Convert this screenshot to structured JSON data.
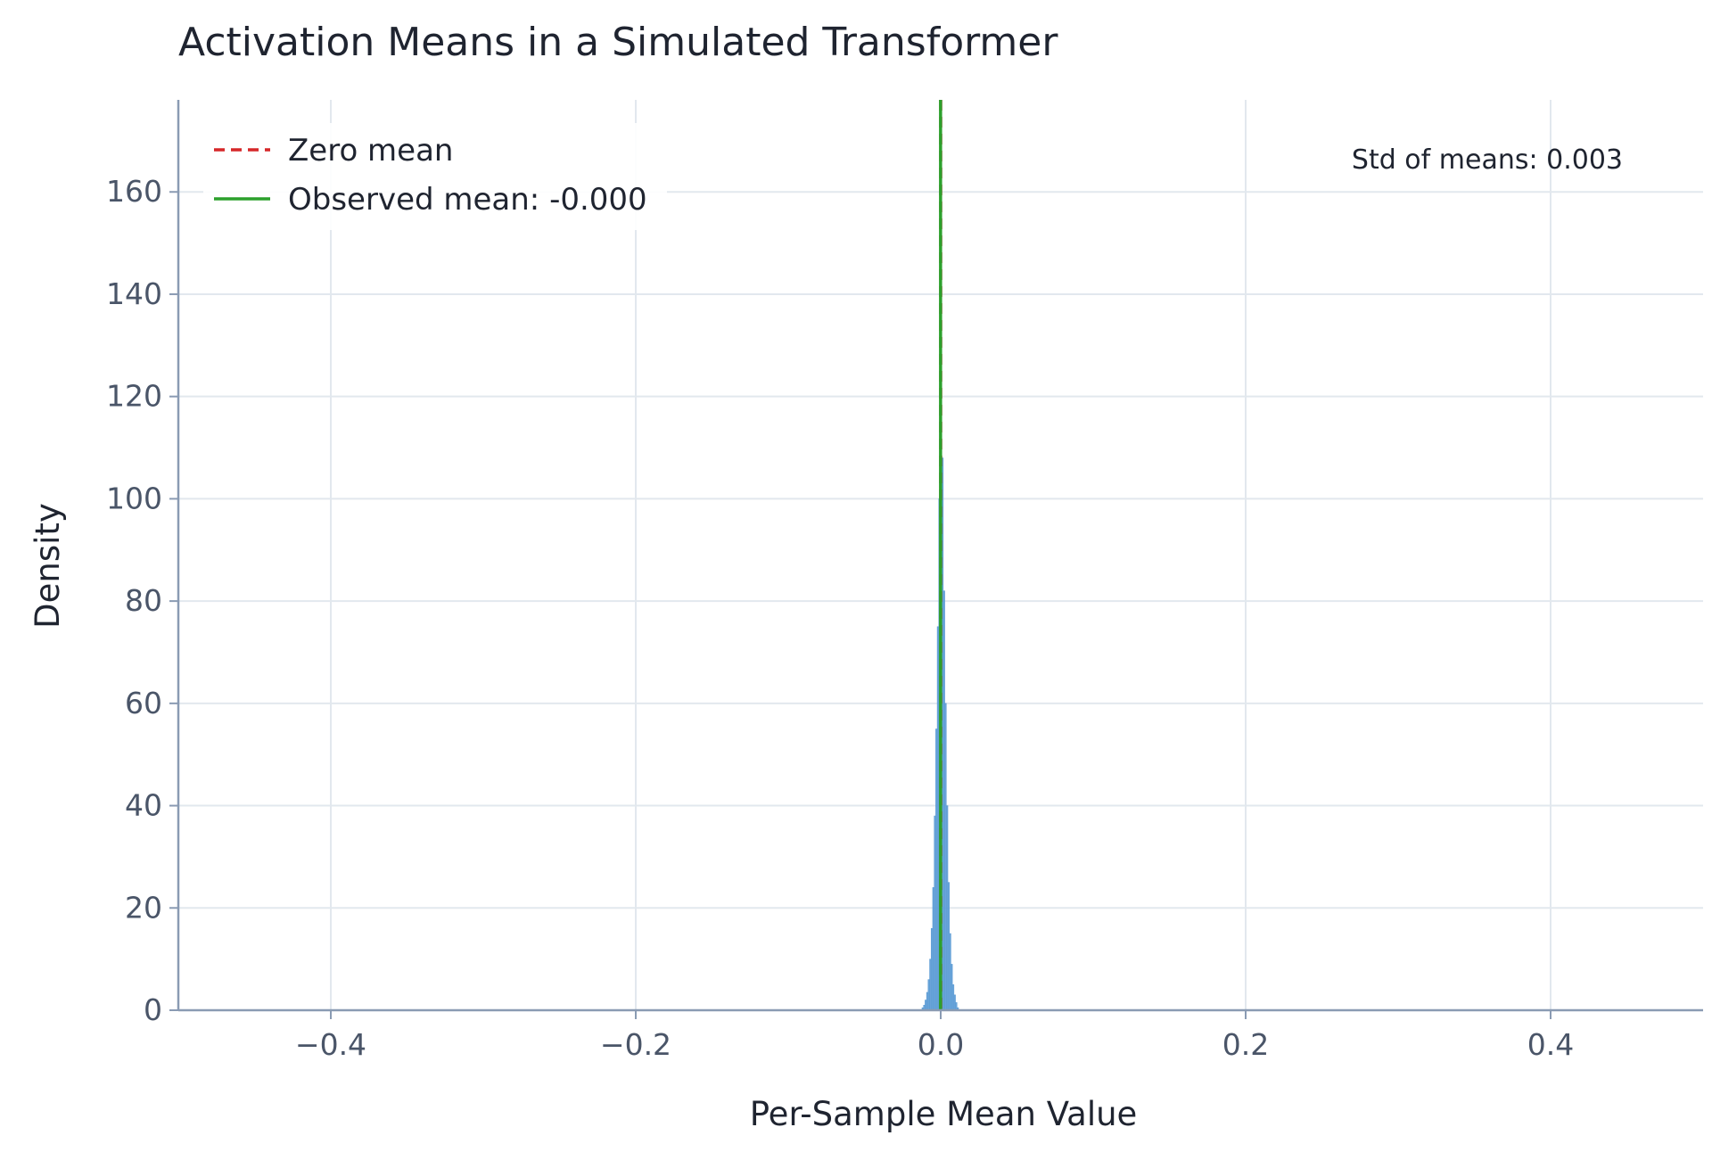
{
  "chart_data": {
    "type": "histogram",
    "title": "Activation Means in a Simulated Transformer",
    "xlabel": "Per-Sample Mean Value",
    "ylabel": "Density",
    "xlim": [
      -0.5,
      0.5
    ],
    "ylim": [
      0,
      178
    ],
    "x_ticks": [
      -0.4,
      -0.2,
      0.0,
      0.2,
      0.4
    ],
    "x_tick_labels": [
      "−0.4",
      "−0.2",
      "0.0",
      "0.2",
      "0.4"
    ],
    "y_ticks": [
      0,
      20,
      40,
      60,
      80,
      100,
      120,
      140,
      160
    ],
    "y_tick_labels": [
      "0",
      "20",
      "40",
      "60",
      "80",
      "100",
      "120",
      "140",
      "160"
    ],
    "grid": true,
    "legend_position": "top-left",
    "histogram": {
      "bin_centers": [
        -0.0118,
        -0.0108,
        -0.0098,
        -0.0088,
        -0.0078,
        -0.0068,
        -0.0058,
        -0.0048,
        -0.0038,
        -0.0028,
        -0.0018,
        -0.0008,
        0.0002,
        0.0012,
        0.0022,
        0.0032,
        0.0042,
        0.0052,
        0.0062,
        0.0072,
        0.0082,
        0.0092,
        0.0102,
        0.0112
      ],
      "density": [
        0.5,
        1,
        2,
        3.5,
        6,
        10,
        16,
        24,
        38,
        55,
        75,
        100,
        125,
        108,
        82,
        60,
        40,
        25,
        15,
        9,
        5,
        3,
        1.5,
        0.5
      ],
      "color": "#5b9bd5"
    },
    "lines": [
      {
        "label": "Zero mean",
        "x": 0.0,
        "color": "#d62728",
        "style": "dashed"
      },
      {
        "label": "Observed mean: -0.000",
        "x": -0.0001,
        "color": "#2ca02c",
        "style": "solid"
      }
    ],
    "annotation": "Std of means: 0.003"
  },
  "colors": {
    "axis": "#8a9bb3",
    "grid": "#e2e8ee",
    "tick_text": "#4a5568",
    "text": "#1f2430"
  }
}
